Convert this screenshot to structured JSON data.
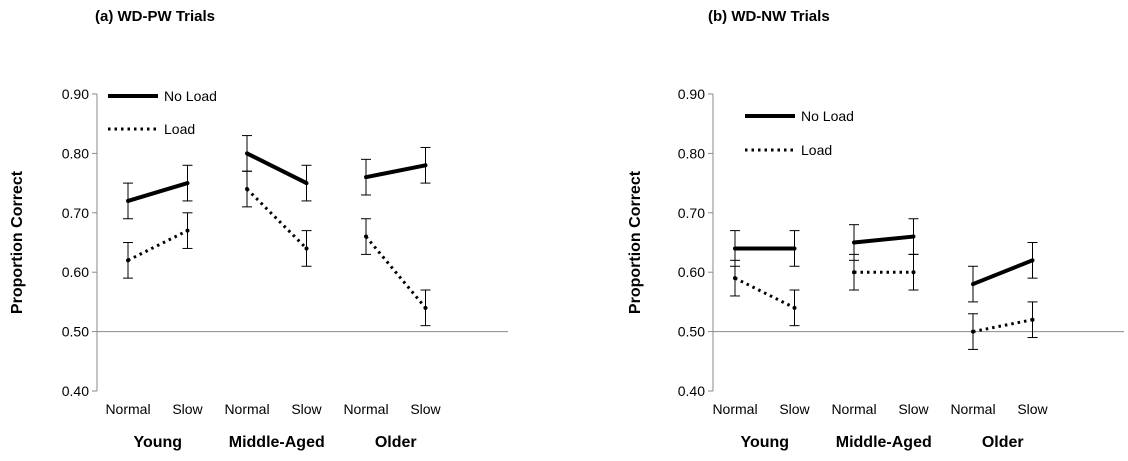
{
  "chart_data": [
    {
      "type": "line",
      "title": "(a) WD-PW Trials",
      "ylabel": "Proportion Correct",
      "ylim": [
        0.4,
        0.9
      ],
      "yticks": [
        "0.40",
        "0.50",
        "0.60",
        "0.70",
        "0.80",
        "0.90"
      ],
      "groups": [
        {
          "name": "Young",
          "conditions": [
            "Normal",
            "Slow"
          ]
        },
        {
          "name": "Middle-Aged",
          "conditions": [
            "Normal",
            "Slow"
          ]
        },
        {
          "name": "Older",
          "conditions": [
            "Normal",
            "Slow"
          ]
        }
      ],
      "legend_position": "top-left",
      "series": [
        {
          "name": "No Load",
          "style": "solid",
          "values": [
            [
              0.72,
              0.75
            ],
            [
              0.8,
              0.75
            ],
            [
              0.76,
              0.78
            ]
          ],
          "error": 0.03
        },
        {
          "name": "Load",
          "style": "dotted",
          "values": [
            [
              0.62,
              0.67
            ],
            [
              0.74,
              0.64
            ],
            [
              0.66,
              0.54
            ]
          ],
          "error": 0.03
        }
      ]
    },
    {
      "type": "line",
      "title": "(b) WD-NW Trials",
      "ylabel": "Proportion Correct",
      "ylim": [
        0.4,
        0.9
      ],
      "yticks": [
        "0.40",
        "0.50",
        "0.60",
        "0.70",
        "0.80",
        "0.90"
      ],
      "groups": [
        {
          "name": "Young",
          "conditions": [
            "Normal",
            "Slow"
          ]
        },
        {
          "name": "Middle-Aged",
          "conditions": [
            "Normal",
            "Slow"
          ]
        },
        {
          "name": "Older",
          "conditions": [
            "Normal",
            "Slow"
          ]
        }
      ],
      "legend_position": "top-left",
      "series": [
        {
          "name": "No Load",
          "style": "solid",
          "values": [
            [
              0.64,
              0.64
            ],
            [
              0.65,
              0.66
            ],
            [
              0.58,
              0.62
            ]
          ],
          "error": 0.03
        },
        {
          "name": "Load",
          "style": "dotted",
          "values": [
            [
              0.59,
              0.54
            ],
            [
              0.6,
              0.6
            ],
            [
              0.5,
              0.52
            ]
          ],
          "error": 0.03
        }
      ]
    }
  ]
}
